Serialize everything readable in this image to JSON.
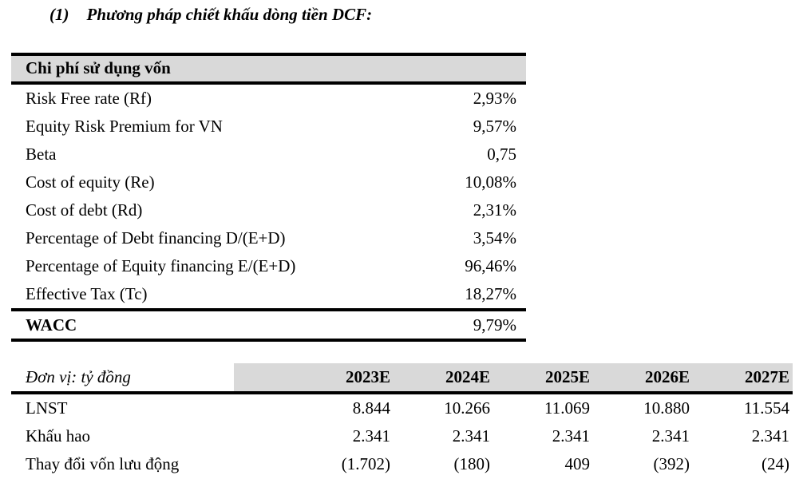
{
  "section": {
    "number": "(1)",
    "title": "Phương pháp chiết khấu dòng tiền DCF:"
  },
  "capital_table": {
    "header": "Chi phí sử dụng vốn",
    "rows": [
      {
        "label": "Risk Free rate (Rf)",
        "value": "2,93%"
      },
      {
        "label": "Equity Risk Premium for VN",
        "value": "9,57%"
      },
      {
        "label": "Beta",
        "value": "0,75"
      },
      {
        "label": "Cost of equity (Re)",
        "value": "10,08%"
      },
      {
        "label": "Cost of debt (Rd)",
        "value": "2,31%"
      },
      {
        "label": "Percentage of Debt financing D/(E+D)",
        "value": "3,54%"
      },
      {
        "label": "Percentage of Equity financing E/(E+D)",
        "value": "96,46%"
      },
      {
        "label": "Effective Tax (Tc)",
        "value": "18,27%"
      }
    ],
    "total_row": {
      "label": "WACC",
      "value": "9,79%"
    }
  },
  "forecast_table": {
    "unit_label": "Đơn vị: tỷ đồng",
    "years": [
      "2023E",
      "2024E",
      "2025E",
      "2026E",
      "2027E"
    ],
    "rows": [
      {
        "label": "LNST",
        "values": [
          "8.844",
          "10.266",
          "11.069",
          "10.880",
          "11.554"
        ]
      },
      {
        "label": "Khấu hao",
        "values": [
          "2.341",
          "2.341",
          "2.341",
          "2.341",
          "2.341"
        ]
      },
      {
        "label": "Thay đổi vốn lưu động",
        "values": [
          "(1.702)",
          "(180)",
          "409",
          "(392)",
          "(24)"
        ]
      }
    ]
  },
  "colors": {
    "header_bg": "#d9d9d9",
    "text_color": "#000000",
    "border_color": "#000000",
    "page_bg": "#ffffff"
  }
}
